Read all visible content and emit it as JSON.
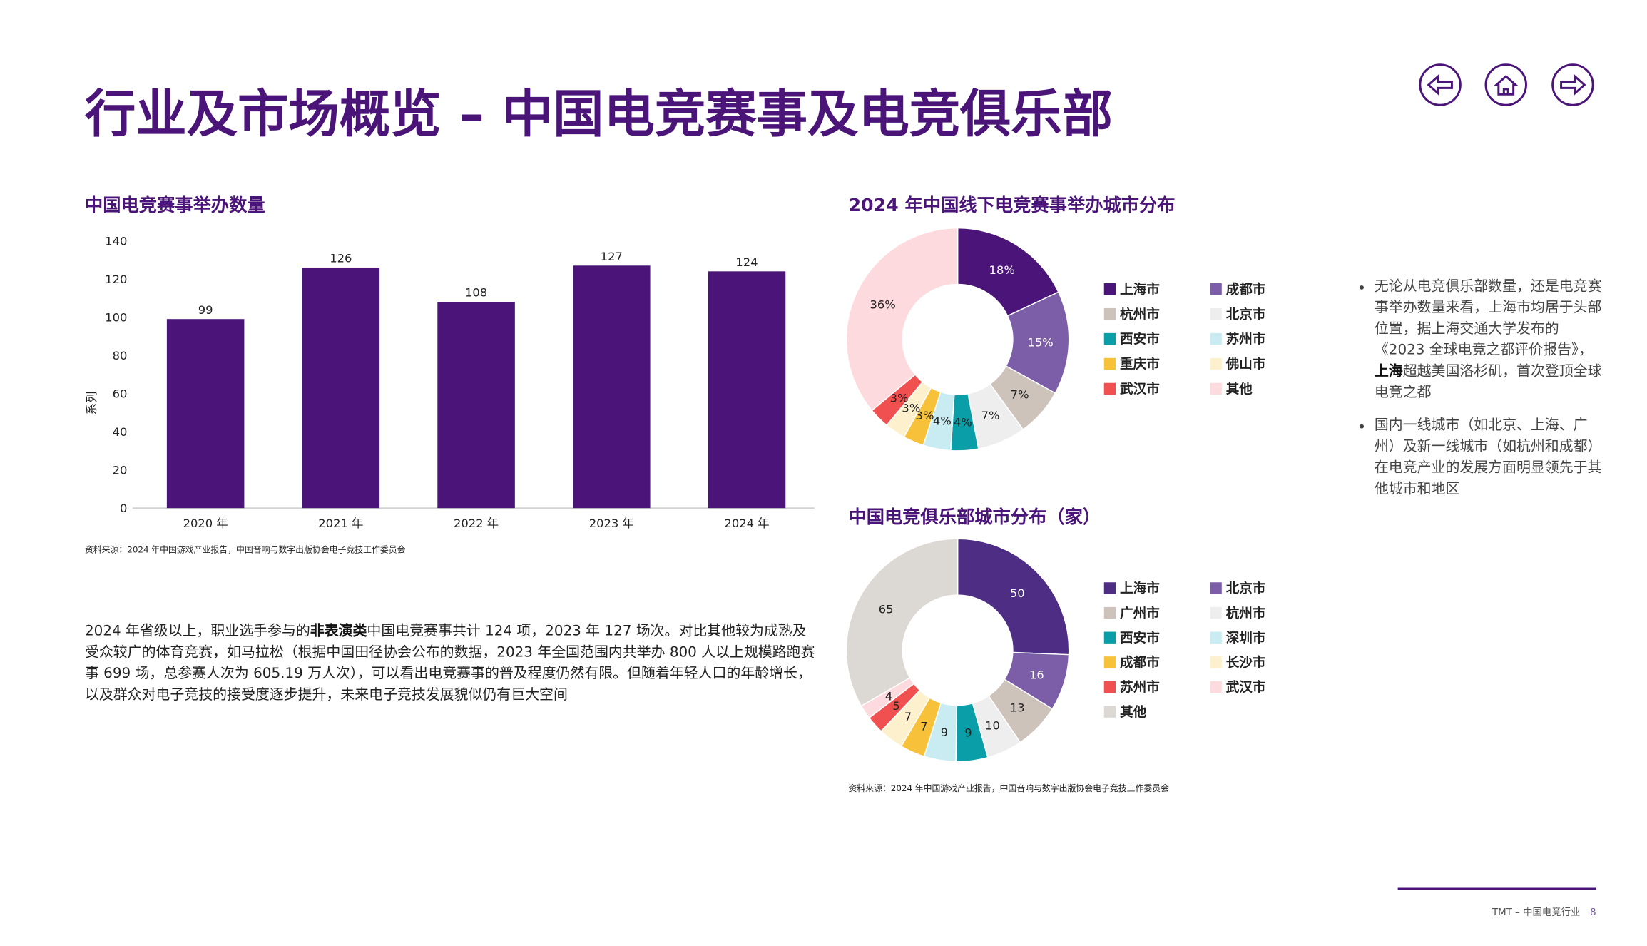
{
  "header": {
    "title": "行业及市场概览 – 中国电竞赛事及电竞俱乐部"
  },
  "chart_data": [
    {
      "type": "bar",
      "title": "中国电竞赛事举办数量",
      "categories": [
        "2020 年",
        "2021 年",
        "2022 年",
        "2023 年",
        "2024 年"
      ],
      "values": [
        99,
        126,
        108,
        127,
        124
      ],
      "color": "#4a1478",
      "y_label": "系列",
      "ylim": [
        0,
        140
      ],
      "yticks": [
        0,
        20,
        40,
        60,
        80,
        100,
        120,
        140
      ],
      "grid": false,
      "source": "资料来源：2024 年中国游戏产业报告，中国音响与数字出版协会电子竞技工作委员会"
    },
    {
      "type": "donut",
      "title": "2024 年中国线下电竞赛事举办城市分布",
      "categories": [
        "上海市",
        "成都市",
        "杭州市",
        "北京市",
        "西安市",
        "苏州市",
        "重庆市",
        "佛山市",
        "武汉市",
        "其他"
      ],
      "values": [
        18,
        15,
        7,
        7,
        4,
        4,
        3,
        3,
        3,
        36
      ],
      "value_labels": [
        "18%",
        "15%",
        "7%",
        "7%",
        "4%",
        "4%",
        "3%",
        "3%",
        "3%",
        "36%"
      ],
      "colors": [
        "#4a1478",
        "#7b5ea7",
        "#cdc3bb",
        "#eeeeee",
        "#0a9ea8",
        "#c9ecf2",
        "#f8c13a",
        "#fdf0cc",
        "#f05050",
        "#fddadd"
      ]
    },
    {
      "type": "donut",
      "title": "中国电竞俱乐部城市分布（家）",
      "categories": [
        "上海市",
        "北京市",
        "广州市",
        "杭州市",
        "西安市",
        "深圳市",
        "成都市",
        "长沙市",
        "苏州市",
        "武汉市",
        "其他"
      ],
      "values": [
        50,
        16,
        13,
        10,
        9,
        9,
        7,
        7,
        5,
        4,
        65
      ],
      "colors": [
        "#4e2d84",
        "#7b5ea7",
        "#cdc3bb",
        "#eeeeee",
        "#0a9ea8",
        "#c9ecf2",
        "#f8c13a",
        "#fdf0cc",
        "#f05050",
        "#fddadd",
        "#dcd8d4"
      ],
      "source": "资料来源：2024 年中国游戏产业报告，中国音响与数字出版协会电子竞技工作委员会"
    }
  ],
  "paragraph": {
    "before": "2024 年省级以上，职业选手参与的",
    "bold": "非表演类",
    "after": "中国电竞赛事共计 124 项，2023 年 127 场次。对比其他较为成熟及受众较广的体育竞赛，如马拉松（根据中国田径协会公布的数据，2023 年全国范围内共举办 800 人以上规模路跑赛事 699 场，总参赛人次为 605.19 万人次），可以看出电竞赛事的普及程度仍然有限。但随着年轻人口的年龄增长，以及群众对电子竞技的接受度逐步提升，未来电子竞技发展貌似仍有巨大空间"
  },
  "bullets": [
    {
      "before": "无论从电竞俱乐部数量，还是电竞赛事举办数量来看，上海市均居于头部位置，据上海交通大学发布的《2023 全球电竞之都评价报告》，",
      "bold": "上海",
      "after": "超越美国洛杉矶，首次登顶全球电竞之都"
    },
    {
      "text": "国内一线城市（如北京、上海、广州）及新一线城市（如杭州和成都）在电竞产业的发展方面明显领先于其他城市和地区"
    }
  ],
  "footer": {
    "text": "TMT – 中国电竞行业",
    "page": 8
  }
}
